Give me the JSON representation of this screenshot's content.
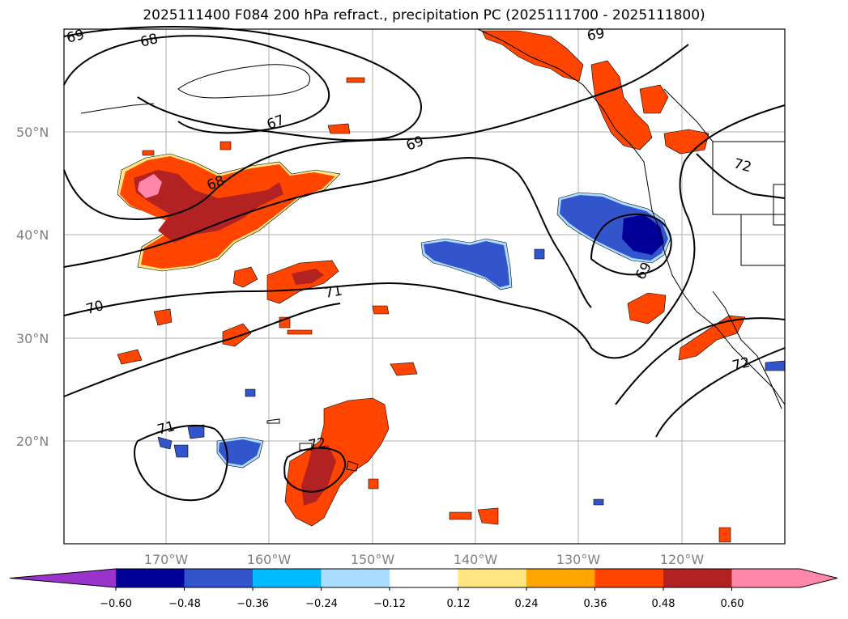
{
  "title": "2025111400 F084 200 hPa refract., precipitation PC (2025111700 - 2025111800)",
  "map": {
    "lat_labels": [
      "50°N",
      "40°N",
      "30°N",
      "20°N"
    ],
    "lon_labels": [
      "170°W",
      "160°W",
      "150°W",
      "140°W",
      "130°W",
      "120°W"
    ],
    "contour_labels": [
      "69",
      "68",
      "67",
      "69",
      "68",
      "70",
      "71",
      "69",
      "72",
      "71",
      "72",
      "72",
      "69"
    ]
  },
  "colorbar": {
    "ticks": [
      "−0.60",
      "−0.48",
      "−0.36",
      "−0.24",
      "−0.12",
      "0.12",
      "0.24",
      "0.36",
      "0.48",
      "0.60"
    ],
    "colors": [
      "#9933cc",
      "#000099",
      "#3355cc",
      "#00bbff",
      "#aaddff",
      "#ffffff",
      "#ffe680",
      "#ffa500",
      "#ff4500",
      "#b22222",
      "#ff88aa",
      "#ff88aa"
    ]
  },
  "colors": {
    "refract_high": "#ff88aa",
    "refract_med_high": "#b22222",
    "refract_med": "#ff4500",
    "refract_low": "#ffa500",
    "refract_lowest": "#ffe680",
    "neg_low": "#aaddff",
    "neg_med": "#3355cc",
    "neg_high": "#000099"
  }
}
